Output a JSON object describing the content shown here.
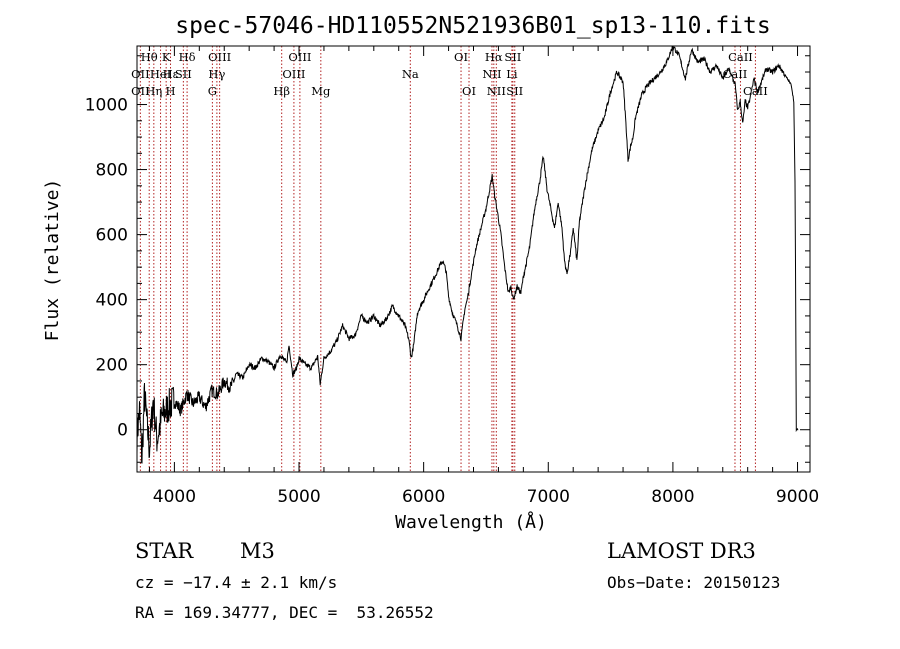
{
  "chart_data": {
    "type": "line",
    "title": "spec-57046-HD110552N521936B01_sp13-110.fits",
    "xlabel": "Wavelength (Å)",
    "ylabel": "Flux (relative)",
    "xlim": [
      3700,
      9100
    ],
    "ylim": [
      -130,
      1180
    ],
    "xticks": [
      4000,
      5000,
      6000,
      7000,
      8000,
      9000
    ],
    "yticks": [
      0,
      200,
      400,
      600,
      800,
      1000
    ],
    "series": [
      {
        "name": "spectrum",
        "x": [
          3700,
          3720,
          3740,
          3760,
          3780,
          3800,
          3830,
          3860,
          3900,
          3950,
          4000,
          4050,
          4100,
          4150,
          4200,
          4250,
          4300,
          4350,
          4400,
          4450,
          4500,
          4550,
          4600,
          4650,
          4700,
          4750,
          4800,
          4850,
          4900,
          4920,
          4950,
          4980,
          5000,
          5050,
          5100,
          5150,
          5170,
          5200,
          5250,
          5300,
          5350,
          5400,
          5450,
          5500,
          5550,
          5600,
          5650,
          5700,
          5750,
          5800,
          5850,
          5880,
          5900,
          5920,
          5950,
          6000,
          6050,
          6100,
          6150,
          6180,
          6200,
          6230,
          6270,
          6300,
          6330,
          6350,
          6380,
          6420,
          6460,
          6500,
          6530,
          6550,
          6570,
          6600,
          6620,
          6650,
          6680,
          6700,
          6720,
          6750,
          6780,
          6800,
          6850,
          6880,
          6900,
          6930,
          6960,
          6990,
          7020,
          7050,
          7080,
          7110,
          7130,
          7150,
          7180,
          7200,
          7230,
          7250,
          7300,
          7350,
          7400,
          7450,
          7500,
          7550,
          7600,
          7620,
          7640,
          7660,
          7680,
          7700,
          7750,
          7800,
          7850,
          7900,
          7950,
          8000,
          8050,
          8100,
          8150,
          8200,
          8250,
          8300,
          8350,
          8400,
          8450,
          8500,
          8520,
          8540,
          8560,
          8580,
          8600,
          8620,
          8650,
          8680,
          8700,
          8750,
          8800,
          8850,
          8900,
          8950,
          8970,
          8980,
          8990,
          9000,
          9005
        ],
        "y": [
          -20,
          60,
          -90,
          110,
          20,
          -60,
          90,
          -30,
          40,
          70,
          90,
          60,
          110,
          80,
          100,
          70,
          120,
          110,
          150,
          130,
          170,
          160,
          200,
          190,
          220,
          210,
          190,
          230,
          205,
          260,
          170,
          190,
          220,
          200,
          190,
          225,
          140,
          220,
          240,
          270,
          320,
          280,
          290,
          350,
          330,
          350,
          320,
          340,
          380,
          350,
          320,
          280,
          220,
          260,
          360,
          400,
          440,
          480,
          520,
          490,
          410,
          360,
          320,
          280,
          370,
          400,
          470,
          560,
          620,
          680,
          740,
          780,
          720,
          650,
          600,
          500,
          420,
          440,
          400,
          440,
          420,
          470,
          560,
          650,
          700,
          760,
          840,
          740,
          680,
          620,
          700,
          620,
          520,
          480,
          550,
          620,
          520,
          640,
          760,
          860,
          920,
          960,
          1040,
          1100,
          1070,
          960,
          830,
          870,
          900,
          960,
          1030,
          1060,
          1080,
          1100,
          1130,
          1180,
          1150,
          1080,
          1170,
          1130,
          1140,
          1100,
          1120,
          1080,
          1110,
          1060,
          980,
          1010,
          940,
          1010,
          990,
          1020,
          1080,
          1040,
          1060,
          1110,
          1100,
          1120,
          1090,
          1060,
          1010,
          760,
          0,
          0,
          0
        ]
      }
    ],
    "spectral_lines": [
      {
        "label": "Hθ",
        "x": 3798,
        "row": 1
      },
      {
        "label": "OII",
        "x": 3727,
        "row": 2
      },
      {
        "label": "OII",
        "x": 3727,
        "row": 3
      },
      {
        "label": "Hε",
        "x": 3970,
        "row": 2
      },
      {
        "label": "HeI",
        "x": 3889,
        "row": 2
      },
      {
        "label": "Hη",
        "x": 3835,
        "row": 3
      },
      {
        "label": "K",
        "x": 3934,
        "row": 1
      },
      {
        "label": "SII",
        "x": 4072,
        "row": 2
      },
      {
        "label": "H",
        "x": 3969,
        "row": 3
      },
      {
        "label": "Hδ",
        "x": 4102,
        "row": 1
      },
      {
        "label": "OIII",
        "x": 4363,
        "row": 1
      },
      {
        "label": "Hγ",
        "x": 4341,
        "row": 2
      },
      {
        "label": "G",
        "x": 4305,
        "row": 3
      },
      {
        "label": "Hβ",
        "x": 4861,
        "row": 3
      },
      {
        "label": "OIII",
        "x": 5007,
        "row": 1
      },
      {
        "label": "OIII",
        "x": 4959,
        "row": 2
      },
      {
        "label": "Mg",
        "x": 5175,
        "row": 3
      },
      {
        "label": "Na",
        "x": 5893,
        "row": 2
      },
      {
        "label": "OI",
        "x": 6300,
        "row": 1
      },
      {
        "label": "OI",
        "x": 6364,
        "row": 3
      },
      {
        "label": "Hα",
        "x": 6563,
        "row": 1
      },
      {
        "label": "SII",
        "x": 6716,
        "row": 1
      },
      {
        "label": "NII",
        "x": 6548,
        "row": 2
      },
      {
        "label": "Li",
        "x": 6708,
        "row": 2
      },
      {
        "label": "NII",
        "x": 6583,
        "row": 3
      },
      {
        "label": "SII",
        "x": 6731,
        "row": 3
      },
      {
        "label": "CaII",
        "x": 8542,
        "row": 1
      },
      {
        "label": "CaII",
        "x": 8498,
        "row": 2
      },
      {
        "label": "CaII",
        "x": 8662,
        "row": 3
      }
    ],
    "line_marker_positions": [
      3727,
      3798,
      3835,
      3889,
      3934,
      3969,
      4072,
      4102,
      4305,
      4341,
      4363,
      4861,
      4959,
      5007,
      5175,
      5893,
      6300,
      6364,
      6548,
      6563,
      6583,
      6708,
      6716,
      6731,
      8498,
      8542,
      8662
    ],
    "colors": {
      "spectrum": "#000000",
      "line_marker": "#b22222",
      "axes": "#000000"
    }
  },
  "info": {
    "object_type": "STAR",
    "subclass": "M3",
    "survey": "LAMOST DR3",
    "cz": "cz = −17.4 ± 2.1 km/s",
    "obs_date": "Obs−Date: 20150123",
    "coords": "RA = 169.34777, DEC =  53.26552"
  }
}
